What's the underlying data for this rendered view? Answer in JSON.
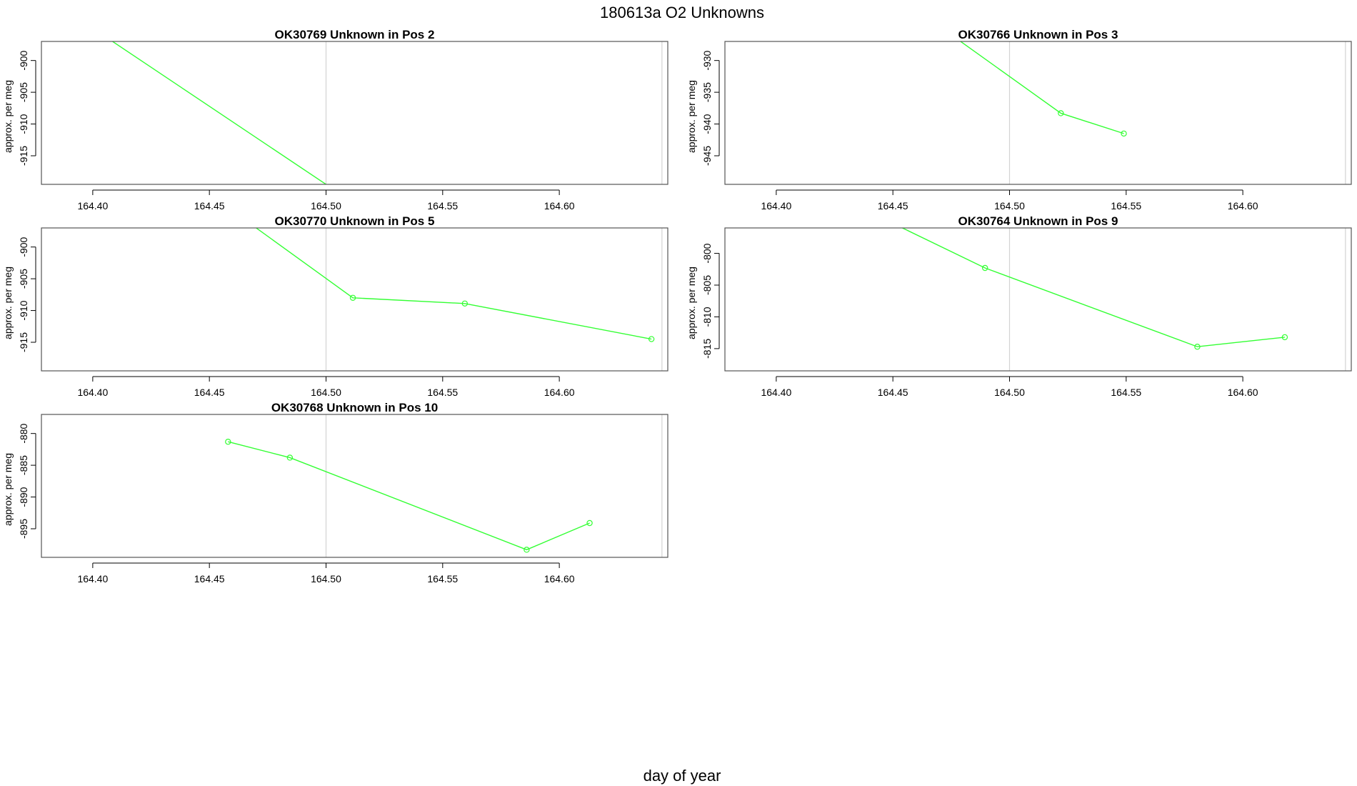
{
  "figure": {
    "title": "180613a  O2 Unknowns",
    "xlabel": "day of year"
  },
  "colors": {
    "series": "#33ff33",
    "frame": "#555555",
    "refline": "#d3d3d3",
    "text": "#000000"
  },
  "chart_data": [
    {
      "type": "line",
      "title": "OK30769    Unknown in Pos 2",
      "xlabel": "",
      "ylabel": "approx. per meg",
      "xlim": [
        164.378,
        164.6465
      ],
      "ylim": [
        -919.5,
        -897
      ],
      "xticks": [
        "164.40",
        "164.45",
        "164.50",
        "164.55",
        "164.60"
      ],
      "yticks": [
        "-915",
        "-910",
        "-905",
        "-900"
      ],
      "grid": false,
      "ref_x": [
        164.5,
        164.644
      ],
      "series": [
        {
          "x": [
            164.38,
            164.5
          ],
          "y": [
            -890.0,
            -919.5
          ],
          "markers": []
        }
      ]
    },
    {
      "type": "line",
      "title": "OK30766    Unknown in Pos 3",
      "xlabel": "",
      "ylabel": "approx. per meg",
      "xlim": [
        164.378,
        164.6465
      ],
      "ylim": [
        -949.5,
        -927
      ],
      "xticks": [
        "164.40",
        "164.45",
        "164.50",
        "164.55",
        "164.60"
      ],
      "yticks": [
        "-945",
        "-940",
        "-935",
        "-930"
      ],
      "grid": false,
      "ref_x": [
        164.5,
        164.644
      ],
      "series": [
        {
          "x": [
            164.46,
            164.522,
            164.549
          ],
          "y": [
            -922.0,
            -938.3,
            -941.5
          ],
          "markers": [
            false,
            true,
            true
          ]
        }
      ]
    },
    {
      "type": "line",
      "title": "OK30770    Unknown in Pos 5",
      "xlabel": "",
      "ylabel": "approx. per meg",
      "xlim": [
        164.378,
        164.6465
      ],
      "ylim": [
        -919.5,
        -897
      ],
      "xticks": [
        "164.40",
        "164.45",
        "164.50",
        "164.55",
        "164.60"
      ],
      "yticks": [
        "-915",
        "-910",
        "-905",
        "-900"
      ],
      "grid": false,
      "ref_x": [
        164.5,
        164.644
      ],
      "series": [
        {
          "x": [
            164.455,
            164.5115,
            164.5595,
            164.6395
          ],
          "y": [
            -893.0,
            -908.0,
            -908.9,
            -914.5
          ],
          "markers": [
            false,
            true,
            true,
            true
          ]
        }
      ]
    },
    {
      "type": "line",
      "title": "OK30764    Unknown in Pos 9",
      "xlabel": "",
      "ylabel": "approx. per meg",
      "xlim": [
        164.378,
        164.6465
      ],
      "ylim": [
        -818.5,
        -796
      ],
      "xticks": [
        "164.40",
        "164.45",
        "164.50",
        "164.55",
        "164.60"
      ],
      "yticks": [
        "-815",
        "-810",
        "-805",
        "-800"
      ],
      "grid": false,
      "ref_x": [
        164.5,
        164.644
      ],
      "series": [
        {
          "x": [
            164.44,
            164.4895,
            164.5805,
            164.618
          ],
          "y": [
            -793.5,
            -802.3,
            -814.7,
            -813.2
          ],
          "markers": [
            false,
            true,
            true,
            true
          ]
        }
      ]
    },
    {
      "type": "line",
      "title": "OK30768    Unknown in Pos 10",
      "xlabel": "",
      "ylabel": "approx. per meg",
      "xlim": [
        164.378,
        164.6465
      ],
      "ylim": [
        -899.5,
        -877
      ],
      "xticks": [
        "164.40",
        "164.45",
        "164.50",
        "164.55",
        "164.60"
      ],
      "yticks": [
        "-895",
        "-890",
        "-885",
        "-880"
      ],
      "grid": false,
      "ref_x": [
        164.5,
        164.644
      ],
      "series": [
        {
          "x": [
            164.458,
            164.4845,
            164.586,
            164.613
          ],
          "y": [
            -881.3,
            -883.8,
            -898.3,
            -894.1
          ],
          "markers": [
            true,
            true,
            true,
            true
          ]
        }
      ]
    }
  ]
}
